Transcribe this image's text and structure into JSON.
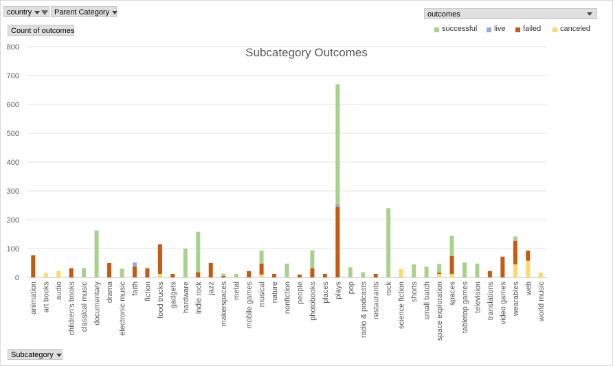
{
  "filters": {
    "country_label": "country",
    "parent_category_label": "Parent Category",
    "count_label": "Count of outcomes",
    "outcomes_label": "outcomes",
    "subcategory_label": "Subcategory"
  },
  "legend": [
    {
      "name": "successful",
      "color": "#a9d18e"
    },
    {
      "name": "live",
      "color": "#8faadc"
    },
    {
      "name": "failed",
      "color": "#c55a11"
    },
    {
      "name": "canceled",
      "color": "#ffd966"
    }
  ],
  "chart_data": {
    "type": "bar",
    "stacked": true,
    "title": "Subcategory Outcomes",
    "xlabel": "",
    "ylabel": "",
    "ylim": [
      0,
      800
    ],
    "yticks": [
      0,
      100,
      200,
      300,
      400,
      500,
      600,
      700,
      800
    ],
    "grid": true,
    "legend_position": "top-right",
    "categories": [
      "animation",
      "art books",
      "audio",
      "children's books",
      "classical music",
      "documentary",
      "drama",
      "electronic music",
      "faith",
      "fiction",
      "food trucks",
      "gadgets",
      "hardware",
      "indie rock",
      "jazz",
      "makerspaces",
      "metal",
      "mobile games",
      "musical",
      "nature",
      "nonfiction",
      "people",
      "photobooks",
      "places",
      "plays",
      "pop",
      "radio & podcasts",
      "restaurants",
      "rock",
      "science fiction",
      "shorts",
      "small batch",
      "space exploration",
      "spaces",
      "tabletop games",
      "television",
      "translations",
      "video games",
      "wearables",
      "web",
      "world music"
    ],
    "series": [
      {
        "name": "canceled",
        "color": "#ffd966",
        "values": [
          0,
          15,
          22,
          0,
          0,
          0,
          0,
          0,
          0,
          0,
          12,
          0,
          0,
          0,
          0,
          0,
          0,
          0,
          10,
          0,
          0,
          0,
          0,
          0,
          0,
          0,
          0,
          0,
          0,
          30,
          0,
          0,
          12,
          12,
          0,
          0,
          0,
          0,
          45,
          58,
          17
        ]
      },
      {
        "name": "failed",
        "color": "#c55a11",
        "values": [
          77,
          0,
          0,
          32,
          0,
          0,
          50,
          0,
          37,
          32,
          103,
          12,
          0,
          18,
          50,
          5,
          0,
          22,
          38,
          12,
          0,
          10,
          32,
          12,
          245,
          0,
          0,
          12,
          0,
          0,
          0,
          0,
          5,
          62,
          0,
          0,
          22,
          72,
          82,
          35,
          0
        ]
      },
      {
        "name": "live",
        "color": "#8faadc",
        "values": [
          0,
          0,
          0,
          0,
          0,
          0,
          0,
          0,
          15,
          0,
          0,
          0,
          0,
          0,
          0,
          0,
          0,
          0,
          0,
          0,
          0,
          0,
          0,
          0,
          10,
          0,
          0,
          0,
          0,
          0,
          0,
          0,
          0,
          0,
          0,
          0,
          0,
          0,
          0,
          0,
          0
        ]
      },
      {
        "name": "successful",
        "color": "#a9d18e",
        "values": [
          0,
          0,
          0,
          0,
          32,
          163,
          0,
          30,
          0,
          0,
          0,
          0,
          100,
          140,
          0,
          8,
          12,
          0,
          45,
          0,
          48,
          0,
          62,
          0,
          415,
          35,
          18,
          0,
          240,
          0,
          45,
          37,
          30,
          70,
          52,
          48,
          0,
          0,
          15,
          0,
          0
        ]
      }
    ]
  }
}
